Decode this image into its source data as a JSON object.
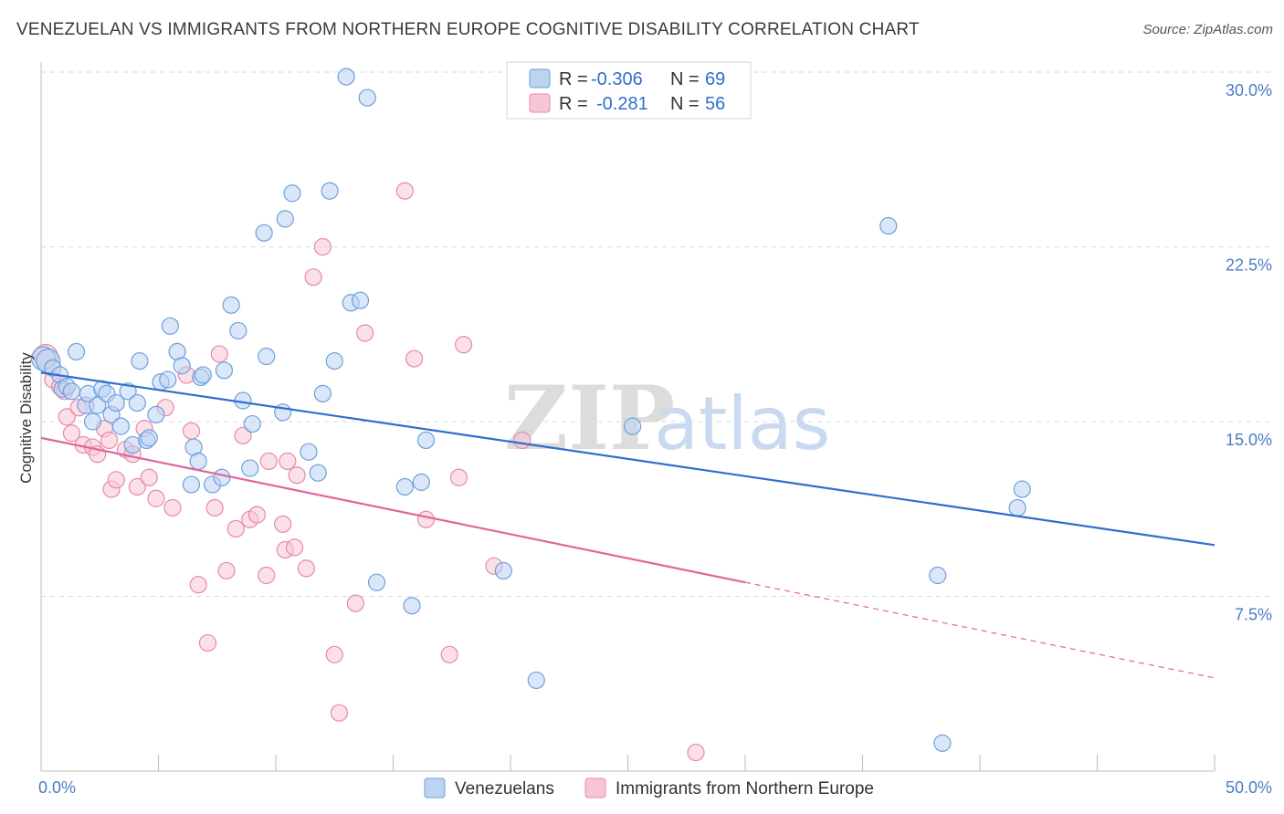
{
  "title": "VENEZUELAN VS IMMIGRANTS FROM NORTHERN EUROPE COGNITIVE DISABILITY CORRELATION CHART",
  "source": "Source: ZipAtlas.com",
  "watermark": {
    "zip": "ZIP",
    "atlas": "atlas"
  },
  "colors": {
    "blue_fill": "#bcd3f2",
    "blue_stroke": "#6f9fdc",
    "blue_line": "#2f6fce",
    "pink_fill": "#f7c6d6",
    "pink_stroke": "#e889a8",
    "pink_line": "#e0659a",
    "grid": "#d9d9d9",
    "axis_text": "#4a7cc4"
  },
  "legend": {
    "rows": [
      {
        "r_label": "R =",
        "r_value": "-0.306",
        "n_label": "N =",
        "n_value": "69"
      },
      {
        "r_label": "R =",
        "r_value": "-0.281",
        "n_label": "N =",
        "n_value": "56"
      }
    ]
  },
  "chart_data": {
    "type": "scatter",
    "title": "VENEZUELAN VS IMMIGRANTS FROM NORTHERN EUROPE COGNITIVE DISABILITY CORRELATION CHART",
    "xlabel": "",
    "ylabel": "Cognitive Disability",
    "xlim": [
      0,
      50
    ],
    "ylim": [
      0,
      30
    ],
    "x_ticks": [
      "0.0%",
      "50.0%"
    ],
    "y_ticks": [
      {
        "value": 7.5,
        "label": "7.5%"
      },
      {
        "value": 15.0,
        "label": "15.0%"
      },
      {
        "value": 22.5,
        "label": "22.5%"
      },
      {
        "value": 30.0,
        "label": "30.0%"
      }
    ],
    "grid": true,
    "legend_position": "top-center",
    "series": [
      {
        "name": "Venezuelans",
        "color": "#6f9fdc",
        "r": -0.306,
        "n": 69,
        "trend": {
          "x0": 0,
          "y0": 17.1,
          "x1": 50,
          "y1": 9.7
        },
        "points": [
          [
            0.1,
            17.7
          ],
          [
            0.3,
            17.6
          ],
          [
            0.5,
            17.3
          ],
          [
            0.8,
            17.0
          ],
          [
            0.9,
            16.4
          ],
          [
            1.1,
            16.5
          ],
          [
            1.3,
            16.3
          ],
          [
            1.5,
            18.0
          ],
          [
            1.9,
            15.7
          ],
          [
            2.0,
            16.2
          ],
          [
            2.2,
            15.0
          ],
          [
            2.4,
            15.7
          ],
          [
            2.6,
            16.4
          ],
          [
            2.8,
            16.2
          ],
          [
            3.0,
            15.3
          ],
          [
            3.2,
            15.8
          ],
          [
            3.4,
            14.8
          ],
          [
            3.7,
            16.3
          ],
          [
            3.9,
            14.0
          ],
          [
            4.1,
            15.8
          ],
          [
            4.2,
            17.6
          ],
          [
            4.5,
            14.2
          ],
          [
            4.6,
            14.3
          ],
          [
            4.9,
            15.3
          ],
          [
            5.1,
            16.7
          ],
          [
            5.4,
            16.8
          ],
          [
            5.5,
            19.1
          ],
          [
            5.8,
            18.0
          ],
          [
            6.0,
            17.4
          ],
          [
            6.4,
            12.3
          ],
          [
            6.5,
            13.9
          ],
          [
            6.7,
            13.3
          ],
          [
            6.8,
            16.9
          ],
          [
            6.9,
            17.0
          ],
          [
            7.3,
            12.3
          ],
          [
            7.7,
            12.6
          ],
          [
            7.8,
            17.2
          ],
          [
            8.1,
            20.0
          ],
          [
            8.4,
            18.9
          ],
          [
            8.6,
            15.9
          ],
          [
            8.9,
            13.0
          ],
          [
            9.0,
            14.9
          ],
          [
            9.5,
            23.1
          ],
          [
            9.6,
            17.8
          ],
          [
            10.3,
            15.4
          ],
          [
            10.4,
            23.7
          ],
          [
            10.7,
            24.8
          ],
          [
            11.4,
            13.7
          ],
          [
            11.8,
            12.8
          ],
          [
            12.0,
            16.2
          ],
          [
            12.3,
            24.9
          ],
          [
            12.5,
            17.6
          ],
          [
            13.0,
            29.8
          ],
          [
            13.2,
            20.1
          ],
          [
            13.6,
            20.2
          ],
          [
            13.9,
            28.9
          ],
          [
            14.3,
            8.1
          ],
          [
            15.5,
            12.2
          ],
          [
            15.8,
            7.1
          ],
          [
            16.2,
            12.4
          ],
          [
            16.4,
            14.2
          ],
          [
            19.7,
            8.6
          ],
          [
            21.1,
            3.9
          ],
          [
            25.2,
            14.8
          ],
          [
            36.1,
            23.4
          ],
          [
            38.2,
            8.4
          ],
          [
            38.4,
            1.2
          ],
          [
            41.6,
            11.3
          ],
          [
            41.8,
            12.1
          ]
        ]
      },
      {
        "name": "Immigrants from Northern Europe",
        "color": "#e889a8",
        "r": -0.281,
        "n": 56,
        "trend": {
          "x0": 0,
          "y0": 14.3,
          "x1": 30,
          "y1": 8.1,
          "dash_to_x": 50,
          "dash_to_y": 4.0
        },
        "points": [
          [
            0.2,
            17.8
          ],
          [
            0.5,
            16.8
          ],
          [
            0.8,
            16.5
          ],
          [
            1.0,
            16.3
          ],
          [
            1.1,
            15.2
          ],
          [
            1.3,
            14.5
          ],
          [
            1.6,
            15.6
          ],
          [
            1.8,
            14.0
          ],
          [
            2.2,
            13.9
          ],
          [
            2.4,
            13.6
          ],
          [
            2.7,
            14.7
          ],
          [
            2.9,
            14.2
          ],
          [
            3.0,
            12.1
          ],
          [
            3.2,
            12.5
          ],
          [
            3.6,
            13.8
          ],
          [
            3.9,
            13.6
          ],
          [
            4.1,
            12.2
          ],
          [
            4.4,
            14.7
          ],
          [
            4.6,
            12.6
          ],
          [
            4.9,
            11.7
          ],
          [
            5.3,
            15.6
          ],
          [
            5.6,
            11.3
          ],
          [
            6.2,
            17.0
          ],
          [
            6.4,
            14.6
          ],
          [
            6.7,
            8.0
          ],
          [
            7.1,
            5.5
          ],
          [
            7.4,
            11.3
          ],
          [
            7.6,
            17.9
          ],
          [
            7.9,
            8.6
          ],
          [
            8.3,
            10.4
          ],
          [
            8.6,
            14.4
          ],
          [
            8.9,
            10.8
          ],
          [
            9.2,
            11.0
          ],
          [
            9.6,
            8.4
          ],
          [
            9.7,
            13.3
          ],
          [
            10.3,
            10.6
          ],
          [
            10.4,
            9.5
          ],
          [
            10.5,
            13.3
          ],
          [
            10.8,
            9.6
          ],
          [
            10.9,
            12.7
          ],
          [
            11.3,
            8.7
          ],
          [
            11.6,
            21.2
          ],
          [
            12.0,
            22.5
          ],
          [
            12.5,
            5.0
          ],
          [
            12.7,
            2.5
          ],
          [
            13.4,
            7.2
          ],
          [
            13.8,
            18.8
          ],
          [
            15.5,
            24.9
          ],
          [
            15.9,
            17.7
          ],
          [
            16.4,
            10.8
          ],
          [
            17.4,
            5.0
          ],
          [
            17.8,
            12.6
          ],
          [
            18.0,
            18.3
          ],
          [
            19.3,
            8.8
          ],
          [
            20.5,
            14.2
          ],
          [
            27.9,
            0.8
          ]
        ]
      }
    ]
  }
}
